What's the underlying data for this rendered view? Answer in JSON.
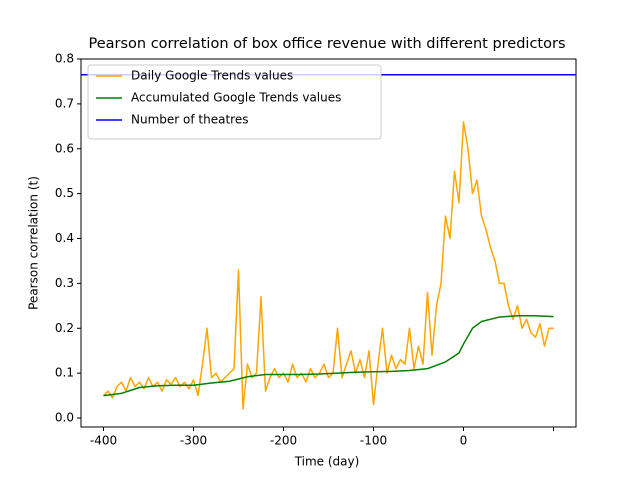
{
  "chart_data": {
    "type": "line",
    "title": "Pearson correlation of box office revenue with different predictors",
    "xlabel": "Time (day)",
    "ylabel": "Pearson correlation (t)",
    "xlim": [
      -425,
      125
    ],
    "ylim": [
      -0.02,
      0.8
    ],
    "xticks": [
      -400,
      -300,
      -200,
      -100,
      0,
      {
        "value": 100,
        "label": null
      }
    ],
    "yticks": [
      {
        "value": 0,
        "label": "0.0"
      },
      0.1,
      0.2,
      0.3,
      0.4,
      0.5,
      0.6,
      0.7,
      0.8
    ],
    "legend": "upper left",
    "series": [
      {
        "name": "Daily Google Trends values",
        "color": "orange",
        "x": [
          -400,
          -395,
          -390,
          -385,
          -380,
          -375,
          -370,
          -365,
          -360,
          -355,
          -350,
          -345,
          -340,
          -335,
          -330,
          -325,
          -320,
          -315,
          -310,
          -305,
          -300,
          -295,
          -290,
          -285,
          -280,
          -275,
          -270,
          -265,
          -260,
          -255,
          -250,
          -245,
          -240,
          -235,
          -230,
          -225,
          -220,
          -215,
          -210,
          -205,
          -200,
          -195,
          -190,
          -185,
          -180,
          -175,
          -170,
          -165,
          -160,
          -155,
          -150,
          -145,
          -140,
          -135,
          -130,
          -125,
          -120,
          -115,
          -110,
          -105,
          -100,
          -95,
          -90,
          -85,
          -80,
          -75,
          -70,
          -65,
          -60,
          -55,
          -50,
          -45,
          -40,
          -35,
          -30,
          -25,
          -20,
          -15,
          -10,
          -5,
          0,
          5,
          10,
          15,
          20,
          25,
          30,
          35,
          40,
          45,
          50,
          55,
          60,
          65,
          70,
          75,
          80,
          85,
          90,
          95,
          100
        ],
        "values": [
          0.05,
          0.06,
          0.045,
          0.07,
          0.08,
          0.06,
          0.09,
          0.07,
          0.08,
          0.065,
          0.09,
          0.07,
          0.08,
          0.06,
          0.085,
          0.075,
          0.09,
          0.07,
          0.08,
          0.065,
          0.085,
          0.05,
          0.12,
          0.2,
          0.09,
          0.1,
          0.08,
          0.09,
          0.1,
          0.11,
          0.33,
          0.02,
          0.12,
          0.09,
          0.1,
          0.27,
          0.06,
          0.09,
          0.11,
          0.09,
          0.1,
          0.08,
          0.12,
          0.09,
          0.1,
          0.08,
          0.11,
          0.09,
          0.1,
          0.12,
          0.09,
          0.1,
          0.2,
          0.09,
          0.12,
          0.15,
          0.1,
          0.13,
          0.09,
          0.15,
          0.03,
          0.12,
          0.2,
          0.1,
          0.14,
          0.11,
          0.13,
          0.12,
          0.2,
          0.11,
          0.16,
          0.12,
          0.28,
          0.14,
          0.25,
          0.3,
          0.45,
          0.4,
          0.55,
          0.48,
          0.66,
          0.6,
          0.5,
          0.53,
          0.45,
          0.42,
          0.38,
          0.35,
          0.3,
          0.3,
          0.25,
          0.22,
          0.25,
          0.2,
          0.22,
          0.19,
          0.18,
          0.21,
          0.16,
          0.2,
          0.2
        ]
      },
      {
        "name": "Accumulated Google Trends values",
        "color": "green",
        "x": [
          -400,
          -380,
          -360,
          -340,
          -320,
          -300,
          -280,
          -260,
          -240,
          -220,
          -200,
          -180,
          -160,
          -140,
          -120,
          -100,
          -80,
          -60,
          -40,
          -20,
          -5,
          0,
          10,
          20,
          40,
          60,
          80,
          100
        ],
        "values": [
          0.05,
          0.055,
          0.068,
          0.072,
          0.073,
          0.073,
          0.078,
          0.082,
          0.092,
          0.097,
          0.097,
          0.097,
          0.098,
          0.1,
          0.102,
          0.103,
          0.104,
          0.106,
          0.11,
          0.125,
          0.145,
          0.165,
          0.2,
          0.215,
          0.225,
          0.228,
          0.228,
          0.226
        ]
      },
      {
        "name": "Number of theatres",
        "color": "blue",
        "hline": 0.765
      }
    ]
  }
}
